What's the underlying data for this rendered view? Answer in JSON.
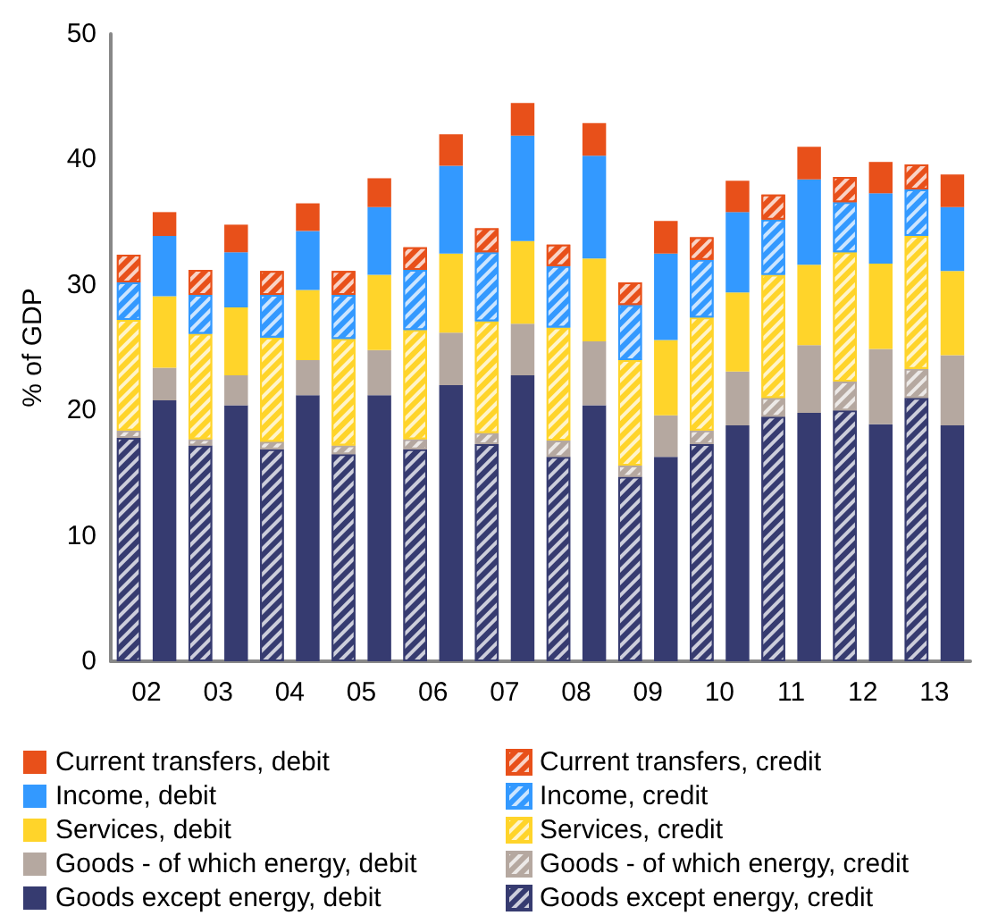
{
  "chart_data": {
    "type": "bar",
    "stacked": true,
    "ylabel": "% of GDP",
    "categories": [
      "02",
      null,
      "03",
      null,
      "04",
      null,
      "05",
      null,
      "06",
      null,
      "07",
      null,
      "08",
      null,
      "09",
      null,
      "10",
      null,
      "11",
      null,
      "12",
      null,
      "13",
      null
    ],
    "ylim": [
      0,
      50
    ],
    "yticks": [
      0,
      10,
      20,
      30,
      40,
      50
    ],
    "grid": false,
    "legend": "bottom",
    "series": [
      {
        "name": "Goods except energy, debit",
        "color": "#363b70",
        "values": [
          null,
          20.8,
          null,
          20.4,
          null,
          21.2,
          null,
          21.2,
          null,
          22.0,
          null,
          22.8,
          null,
          20.4,
          null,
          16.3,
          null,
          18.8,
          null,
          19.8,
          null,
          18.9,
          null,
          18.8
        ]
      },
      {
        "name": "Goods except energy, credit",
        "color": "#363b70",
        "values": [
          17.8,
          null,
          17.2,
          null,
          16.9,
          null,
          16.5,
          null,
          16.9,
          null,
          17.3,
          null,
          16.3,
          null,
          14.7,
          null,
          17.3,
          null,
          19.5,
          null,
          20.0,
          null,
          21.0,
          null
        ]
      },
      {
        "name": "Goods - of which energy, debit",
        "color": "#b5a8a0",
        "values": [
          null,
          2.6,
          null,
          2.4,
          null,
          2.8,
          null,
          3.6,
          null,
          4.2,
          null,
          4.1,
          null,
          5.1,
          null,
          3.3,
          null,
          4.3,
          null,
          5.4,
          null,
          6.0,
          null,
          5.6
        ]
      },
      {
        "name": "Goods - of which energy, credit",
        "color": "#b5a8a0",
        "values": [
          0.6,
          null,
          0.5,
          null,
          0.6,
          null,
          0.7,
          null,
          0.8,
          null,
          0.9,
          null,
          1.3,
          null,
          0.9,
          null,
          1.1,
          null,
          1.5,
          null,
          2.3,
          null,
          2.3,
          null
        ]
      },
      {
        "name": "Services, debit",
        "color": "#ffd42a",
        "values": [
          null,
          5.7,
          null,
          5.4,
          null,
          5.6,
          null,
          6.0,
          null,
          6.3,
          null,
          6.6,
          null,
          6.6,
          null,
          6.0,
          null,
          6.3,
          null,
          6.4,
          null,
          6.8,
          null,
          6.7
        ]
      },
      {
        "name": "Services, credit",
        "color": "#ffd42a",
        "values": [
          8.8,
          null,
          8.4,
          null,
          8.3,
          null,
          8.5,
          null,
          8.7,
          null,
          8.9,
          null,
          9.0,
          null,
          8.4,
          null,
          9.0,
          null,
          9.8,
          null,
          10.3,
          null,
          10.6,
          null
        ]
      },
      {
        "name": "Income, debit",
        "color": "#3399ff",
        "values": [
          null,
          4.8,
          null,
          4.4,
          null,
          4.7,
          null,
          5.4,
          null,
          7.0,
          null,
          8.4,
          null,
          8.2,
          null,
          6.9,
          null,
          6.4,
          null,
          6.8,
          null,
          5.6,
          null,
          5.1
        ]
      },
      {
        "name": "Income, credit",
        "color": "#3399ff",
        "values": [
          3.0,
          null,
          3.1,
          null,
          3.4,
          null,
          3.5,
          null,
          4.8,
          null,
          5.5,
          null,
          4.9,
          null,
          4.4,
          null,
          4.6,
          null,
          4.4,
          null,
          4.0,
          null,
          3.7,
          null
        ]
      },
      {
        "name": "Current transfers, debit",
        "color": "#e8501a",
        "values": [
          null,
          1.9,
          null,
          2.2,
          null,
          2.2,
          null,
          2.3,
          null,
          2.5,
          null,
          2.6,
          null,
          2.6,
          null,
          2.6,
          null,
          2.5,
          null,
          2.6,
          null,
          2.5,
          null,
          2.6
        ]
      },
      {
        "name": "Current transfers, credit",
        "color": "#e8501a",
        "values": [
          2.2,
          null,
          2.0,
          null,
          1.9,
          null,
          1.9,
          null,
          1.8,
          null,
          1.9,
          null,
          1.7,
          null,
          1.8,
          null,
          1.8,
          null,
          2.0,
          null,
          2.0,
          null,
          2.0,
          null
        ]
      }
    ]
  }
}
